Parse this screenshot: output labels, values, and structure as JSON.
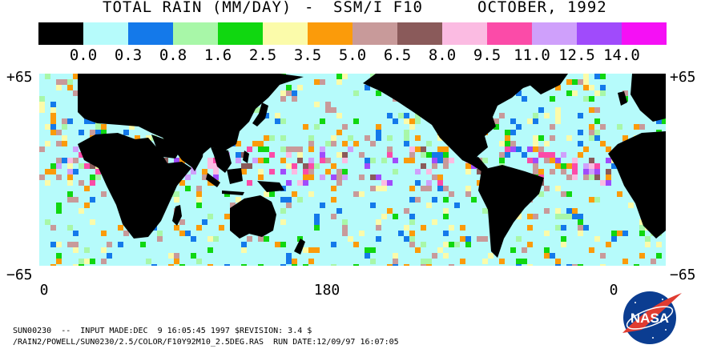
{
  "title": {
    "variable": "TOTAL RAIN (MM/DAY)",
    "separator": "-",
    "sensor": "SSM/I F10",
    "date": "OCTOBER, 1992"
  },
  "legend": {
    "swatches": [
      {
        "color": "#000000",
        "label": "0.0"
      },
      {
        "color": "#b6fbfb",
        "label": "0.3"
      },
      {
        "color": "#1479ea",
        "label": "0.8"
      },
      {
        "color": "#a8f7a8",
        "label": "1.6"
      },
      {
        "color": "#10d710",
        "label": "2.5"
      },
      {
        "color": "#fbfbaa",
        "label": "3.5"
      },
      {
        "color": "#fb9b0a",
        "label": "5.0"
      },
      {
        "color": "#c89a9a",
        "label": "6.5"
      },
      {
        "color": "#8a5a5a",
        "label": "8.0"
      },
      {
        "color": "#fbbbe2",
        "label": "9.5"
      },
      {
        "color": "#fb4ba8",
        "label": "11.0"
      },
      {
        "color": "#cfa0fb",
        "label": "12.5"
      },
      {
        "color": "#a04bfb",
        "label": "14.0"
      },
      {
        "color": "#f510f5",
        "label": ""
      }
    ]
  },
  "axes": {
    "lat_top_left": "+65",
    "lat_top_right": "+65",
    "lat_bottom_left": "−65",
    "lat_bottom_right": "−65",
    "lon_labels": [
      "0",
      "180",
      "0"
    ]
  },
  "map": {
    "land_color": "#000000",
    "ocean_base_color": "#b6fbfb"
  },
  "footer": {
    "line1": "SUN00230  --  INPUT MADE:DEC  9 16:05:45 1997 $REVISION: 3.4 $",
    "line2": "/RAIN2/POWELL/SUN0230/2.5/COLOR/F10Y92M10_2.5DEG.RAS  RUN DATE:12/09/97 16:07:05"
  },
  "logo": {
    "text": "NASA"
  }
}
